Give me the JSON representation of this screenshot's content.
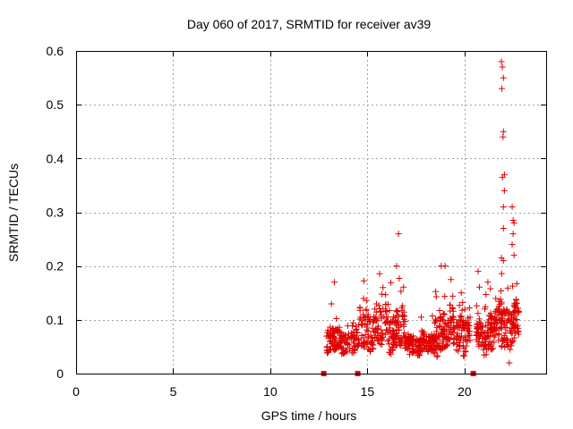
{
  "chart_data": {
    "type": "scatter",
    "title": "Day 060 of 2017, SRMTID for receiver av39",
    "xlabel": "GPS time / hours",
    "ylabel": "SRMTID / TECUs",
    "xlim": [
      0,
      24.2
    ],
    "ylim": [
      0,
      0.6
    ],
    "xticks": [
      0,
      5,
      10,
      15,
      20
    ],
    "yticks": [
      0,
      0.1,
      0.2,
      0.3,
      0.4,
      0.5,
      0.6
    ],
    "xtick_labels": [
      "0",
      "5",
      "10",
      "15",
      "20"
    ],
    "ytick_labels": [
      "0",
      "0.1",
      "0.2",
      "0.3",
      "0.4",
      "0.5",
      "0.6"
    ],
    "grid": true,
    "marker": "+",
    "color": "#e00000",
    "zero_markers": [
      12.75,
      14.5,
      20.45
    ],
    "series": [
      {
        "name": "SRMTID",
        "segments": [
          {
            "x": [
              12.9,
              14.6
            ],
            "level": 0.06,
            "spread": 0.03,
            "n": 150
          },
          {
            "x": [
              14.6,
              16.9
            ],
            "level": 0.085,
            "spread": 0.05,
            "n": 220
          },
          {
            "x": [
              16.9,
              18.5
            ],
            "level": 0.055,
            "spread": 0.025,
            "n": 160
          },
          {
            "x": [
              18.5,
              20.3
            ],
            "level": 0.08,
            "spread": 0.05,
            "n": 180
          },
          {
            "x": [
              20.6,
              21.8
            ],
            "level": 0.075,
            "spread": 0.045,
            "n": 130
          },
          {
            "x": [
              21.8,
              22.8
            ],
            "level": 0.09,
            "spread": 0.05,
            "n": 120
          }
        ],
        "peaks": [
          {
            "x": 13.3,
            "y": 0.17
          },
          {
            "x": 15.8,
            "y": 0.16
          },
          {
            "x": 16.5,
            "y": 0.2
          },
          {
            "x": 16.6,
            "y": 0.26
          },
          {
            "x": 18.8,
            "y": 0.2
          },
          {
            "x": 19.0,
            "y": 0.2
          },
          {
            "x": 20.7,
            "y": 0.19
          },
          {
            "x": 21.2,
            "y": 0.17
          },
          {
            "x": 21.9,
            "y": 0.58
          },
          {
            "x": 21.95,
            "y": 0.57
          },
          {
            "x": 22.0,
            "y": 0.55
          },
          {
            "x": 21.92,
            "y": 0.53
          },
          {
            "x": 22.0,
            "y": 0.45
          },
          {
            "x": 21.98,
            "y": 0.44
          },
          {
            "x": 22.05,
            "y": 0.37
          },
          {
            "x": 21.95,
            "y": 0.365
          },
          {
            "x": 22.05,
            "y": 0.34
          },
          {
            "x": 22.0,
            "y": 0.31
          },
          {
            "x": 22.45,
            "y": 0.31
          },
          {
            "x": 22.5,
            "y": 0.285
          },
          {
            "x": 22.55,
            "y": 0.28
          },
          {
            "x": 22.0,
            "y": 0.27
          },
          {
            "x": 22.5,
            "y": 0.26
          },
          {
            "x": 22.45,
            "y": 0.24
          },
          {
            "x": 22.55,
            "y": 0.22
          },
          {
            "x": 21.9,
            "y": 0.215
          },
          {
            "x": 22.0,
            "y": 0.21
          },
          {
            "x": 22.3,
            "y": 0.02
          }
        ]
      }
    ]
  }
}
